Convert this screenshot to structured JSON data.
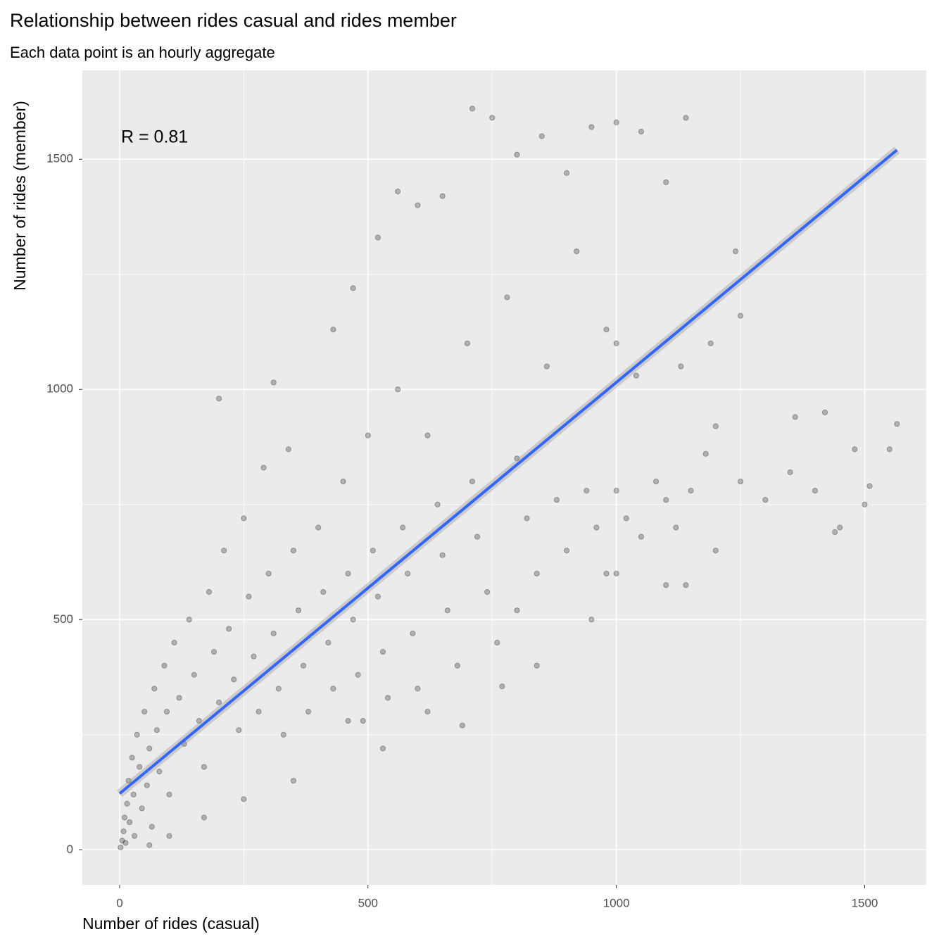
{
  "chart_data": {
    "type": "scatter",
    "title": "Relationship between rides casual and rides member",
    "subtitle": "Each data point is an hourly aggregate",
    "x_label": "Number of rides (casual)",
    "y_label": "Number of rides (member)",
    "annotation": "R =  0.81",
    "color": "#000000",
    "x": [
      2,
      5,
      8,
      10,
      12,
      15,
      18,
      20,
      25,
      28,
      30,
      35,
      40,
      45,
      50,
      55,
      60,
      65,
      70,
      75,
      80,
      90,
      95,
      100,
      110,
      120,
      130,
      140,
      150,
      160,
      170,
      180,
      190,
      200,
      210,
      220,
      230,
      240,
      250,
      260,
      270,
      280,
      290,
      300,
      310,
      320,
      330,
      340,
      350,
      360,
      370,
      380,
      400,
      410,
      420,
      430,
      450,
      460,
      470,
      480,
      490,
      500,
      510,
      520,
      530,
      540,
      560,
      570,
      580,
      590,
      600,
      620,
      640,
      650,
      660,
      680,
      700,
      710,
      720,
      740,
      760,
      780,
      800,
      820,
      840,
      860,
      880,
      900,
      920,
      940,
      960,
      980,
      1000,
      1020,
      1050,
      1080,
      1100,
      1120,
      1150,
      1180,
      1200,
      1250,
      1300,
      1350,
      1400,
      1450,
      1500,
      1550,
      1565,
      200,
      310,
      430,
      470,
      520,
      560,
      600,
      650,
      710,
      750,
      800,
      850,
      900,
      950,
      1000,
      1050,
      1100,
      1140,
      1240,
      1250,
      1000,
      1040,
      980,
      1130,
      1190,
      530,
      690,
      770,
      840,
      950,
      1100,
      1140,
      1360,
      1420,
      1440,
      1480,
      1510,
      1200,
      1000,
      800,
      620,
      460,
      350,
      250,
      170,
      100,
      60
    ],
    "values": [
      5,
      20,
      40,
      70,
      15,
      100,
      150,
      60,
      200,
      120,
      30,
      250,
      180,
      90,
      300,
      140,
      220,
      50,
      350,
      260,
      170,
      400,
      300,
      120,
      450,
      330,
      230,
      500,
      380,
      280,
      180,
      560,
      430,
      320,
      650,
      480,
      370,
      260,
      720,
      550,
      420,
      300,
      830,
      600,
      470,
      350,
      250,
      870,
      650,
      520,
      400,
      300,
      700,
      560,
      450,
      350,
      800,
      600,
      500,
      380,
      280,
      900,
      650,
      550,
      430,
      330,
      1000,
      700,
      600,
      470,
      350,
      900,
      750,
      640,
      520,
      400,
      1100,
      800,
      680,
      560,
      450,
      1200,
      850,
      720,
      600,
      1050,
      760,
      650,
      1300,
      780,
      700,
      600,
      780,
      720,
      680,
      800,
      760,
      700,
      780,
      860,
      650,
      800,
      760,
      820,
      780,
      700,
      750,
      870,
      925,
      980,
      1015,
      1130,
      1220,
      1330,
      1430,
      1400,
      1420,
      1610,
      1590,
      1510,
      1550,
      1470,
      1570,
      1580,
      1560,
      1450,
      1590,
      1300,
      1160,
      1100,
      1030,
      1130,
      1050,
      1100,
      220,
      270,
      355,
      400,
      500,
      575,
      575,
      940,
      950,
      690,
      870,
      790,
      920,
      600,
      520,
      300,
      280,
      150,
      110,
      70,
      30,
      10
    ],
    "fit": {
      "x": [
        0,
        1565
      ],
      "values": [
        122,
        1520
      ],
      "color": "#3366ff"
    },
    "xlim": [
      -75,
      1624
    ],
    "ylim": [
      -76,
      1693
    ],
    "xticks": [
      0,
      500,
      1000,
      1500
    ],
    "yticks": [
      0,
      500,
      1000,
      1500
    ],
    "x_minor_ticks": [
      250,
      750,
      1250
    ],
    "y_minor_ticks": [
      250,
      750,
      1250
    ],
    "grid": true
  }
}
